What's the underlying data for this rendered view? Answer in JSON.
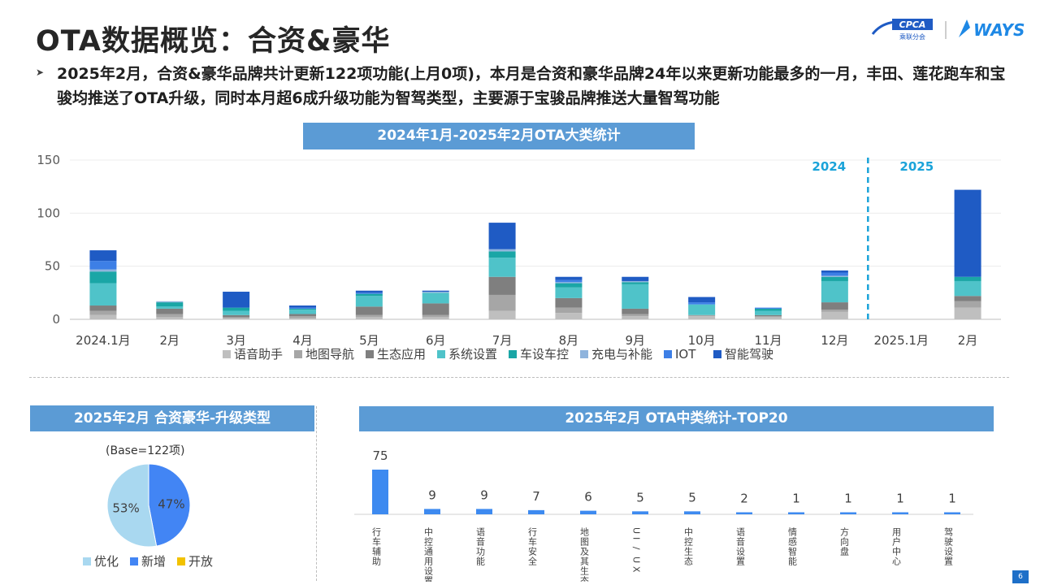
{
  "page": {
    "title": "OTA数据概览：合资&豪华",
    "bullet": "2025年2月，合资&豪华品牌共计更新122项功能(上月0项)，本月是合资和豪华品牌24年以来更新功能最多的一月，丰田、莲花跑车和宝骏均推送了OTA升级，同时本月超6成升级功能为智驾类型，主要源于宝骏品牌推送大量智驾功能",
    "page_number": "6",
    "logos": {
      "cpca_text": "CPCA",
      "cpca_sub": "乘联分会",
      "ways_text": "WAYS"
    }
  },
  "colors": {
    "banner": "#5b9bd5",
    "语音助手": "#bfbfbf",
    "地图导航": "#a6a6a6",
    "生态应用": "#7f7f7f",
    "系统设置": "#4fc3c9",
    "车设车控": "#1aa6a6",
    "充电与补能": "#8fb4dd",
    "IOT": "#3d7fe6",
    "智能驾驶": "#1f5bc4",
    "pie_optimize": "#a9d8f0",
    "pie_new": "#4285f4",
    "pie_open": "#f2c200",
    "top20_bar": "#3d8af0",
    "year_divider": "#1aa3d9"
  },
  "chart_data": [
    {
      "type": "bar",
      "stacked": true,
      "title": "2024年1月-2025年2月OTA大类统计",
      "categories": [
        "2024.1月",
        "2月",
        "3月",
        "4月",
        "5月",
        "6月",
        "7月",
        "8月",
        "9月",
        "10月",
        "11月",
        "12月",
        "2025.1月",
        "2月"
      ],
      "ylim": [
        0,
        150
      ],
      "yticks": [
        0,
        50,
        100,
        150
      ],
      "year_labels": [
        "2024",
        "2025"
      ],
      "legend_position": "bottom",
      "series": [
        {
          "name": "语音助手",
          "values": [
            4,
            2,
            1,
            1,
            2,
            2,
            8,
            6,
            3,
            3,
            2,
            7,
            0,
            11
          ]
        },
        {
          "name": "地图导航",
          "values": [
            4,
            3,
            1,
            2,
            2,
            2,
            15,
            5,
            2,
            1,
            1,
            2,
            0,
            6
          ]
        },
        {
          "name": "生态应用",
          "values": [
            5,
            5,
            2,
            2,
            8,
            11,
            17,
            9,
            5,
            0,
            1,
            7,
            0,
            5
          ]
        },
        {
          "name": "系统设置",
          "values": [
            21,
            2,
            4,
            4,
            10,
            10,
            18,
            10,
            23,
            10,
            4,
            20,
            0,
            14
          ]
        },
        {
          "name": "车设车控",
          "values": [
            11,
            4,
            3,
            1,
            2,
            0,
            6,
            4,
            2,
            0,
            2,
            4,
            0,
            4
          ]
        },
        {
          "name": "充电与补能",
          "values": [
            2,
            1,
            0,
            0,
            0,
            1,
            2,
            1,
            1,
            0,
            0,
            1,
            0,
            0
          ]
        },
        {
          "name": "IOT",
          "values": [
            8,
            0,
            0,
            1,
            1,
            0,
            0,
            2,
            0,
            2,
            1,
            3,
            0,
            0
          ]
        },
        {
          "name": "智能驾驶",
          "values": [
            10,
            0,
            15,
            2,
            2,
            1,
            25,
            3,
            4,
            5,
            0,
            2,
            0,
            82
          ]
        }
      ]
    },
    {
      "type": "pie",
      "title": "2025年2月 合资豪华-升级类型",
      "subtitle": "(Base=122项)",
      "legend_position": "bottom",
      "slices": [
        {
          "name": "优化",
          "value": 53,
          "label": "53%"
        },
        {
          "name": "新增",
          "value": 47,
          "label": "47%"
        },
        {
          "name": "开放",
          "value": 0,
          "label": ""
        }
      ]
    },
    {
      "type": "bar",
      "title": "2025年2月 OTA中类统计-TOP20",
      "categories": [
        "行车辅助",
        "中控通用设置",
        "语音功能",
        "行车安全",
        "地图及其生态",
        "UI/UX",
        "中控生态",
        "语音设置",
        "情感智能",
        "方向盘",
        "用户中心",
        "驾驶设置"
      ],
      "values": [
        75,
        9,
        9,
        7,
        6,
        5,
        5,
        2,
        1,
        1,
        1,
        1
      ]
    }
  ]
}
